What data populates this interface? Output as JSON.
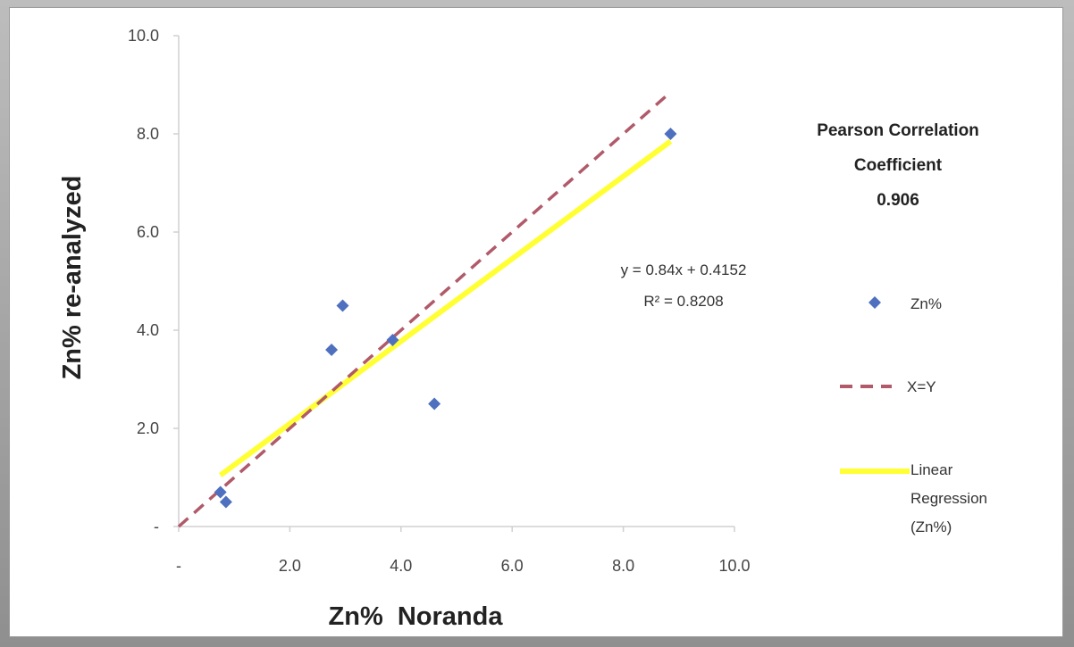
{
  "chart_data": {
    "type": "scatter",
    "xlabel": "Zn%  Noranda",
    "ylabel": "Zn% re-analyzed",
    "xlim": [
      0,
      10
    ],
    "ylim": [
      0,
      10
    ],
    "x_ticks": [
      "-",
      "2.0",
      "4.0",
      "6.0",
      "8.0",
      "10.0"
    ],
    "y_ticks": [
      "-",
      "2.0",
      "4.0",
      "6.0",
      "8.0",
      "10.0"
    ],
    "grid": false,
    "legend_position": "right",
    "series": [
      {
        "name": "Zn%",
        "type": "scatter",
        "color": "#4f6fbf",
        "marker": "diamond",
        "points": [
          {
            "x": 0.75,
            "y": 0.7
          },
          {
            "x": 0.85,
            "y": 0.5
          },
          {
            "x": 2.75,
            "y": 3.6
          },
          {
            "x": 2.95,
            "y": 4.5
          },
          {
            "x": 3.85,
            "y": 3.8
          },
          {
            "x": 4.6,
            "y": 2.5
          },
          {
            "x": 8.85,
            "y": 8.0
          }
        ]
      },
      {
        "name": "X=Y",
        "type": "line",
        "style": "dashed",
        "color": "#b05a6a",
        "points": [
          {
            "x": 0.0,
            "y": 0.0
          },
          {
            "x": 8.85,
            "y": 8.85
          }
        ]
      },
      {
        "name": "Linear Regression (Zn%)",
        "legend_lines": [
          "Linear",
          "Regression",
          "(Zn%)"
        ],
        "type": "line",
        "style": "solid",
        "color": "#ffff33",
        "slope": 0.84,
        "intercept": 0.4152,
        "x_range": [
          0.75,
          8.85
        ]
      }
    ],
    "annotations": {
      "equation": "y = 0.84x + 0.4152",
      "r_squared": "R² = 0.8208",
      "pearson_lines": [
        "Pearson Correlation",
        "Coefficient",
        "0.906"
      ]
    }
  }
}
